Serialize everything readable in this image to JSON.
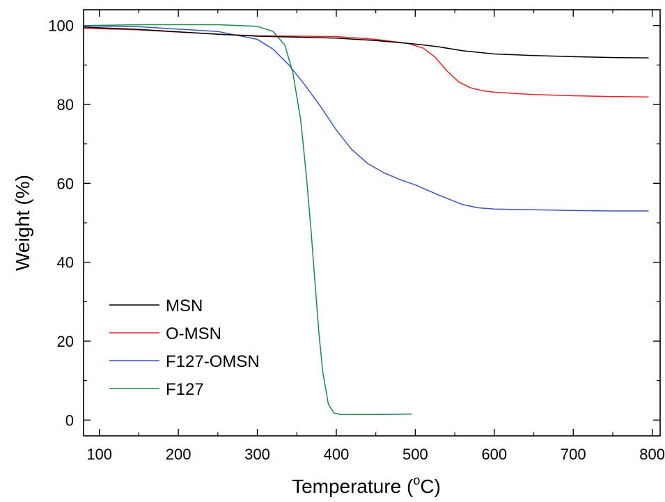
{
  "chart_data": {
    "type": "line",
    "title": "",
    "xlabel": "Temperature (",
    "xlabel_unit_sup": "o",
    "xlabel_unit": "C)",
    "ylabel": "Weight (%)",
    "xlim": [
      80,
      810
    ],
    "ylim": [
      -4,
      104
    ],
    "x_ticks": [
      100,
      200,
      300,
      400,
      500,
      600,
      700,
      800
    ],
    "y_ticks": [
      0,
      20,
      40,
      60,
      80,
      100
    ],
    "grid": false,
    "legend_position": "bottom-left",
    "series": [
      {
        "name": "MSN",
        "color": "#000000",
        "x": [
          80,
          150,
          250,
          300,
          400,
          450,
          500,
          530,
          560,
          600,
          650,
          700,
          750,
          795
        ],
        "y": [
          99.6,
          99.0,
          97.8,
          97.3,
          96.8,
          96.2,
          95.3,
          94.6,
          93.6,
          92.8,
          92.4,
          92.1,
          91.9,
          91.8
        ]
      },
      {
        "name": "O-MSN",
        "color": "#e3242b",
        "x": [
          80,
          150,
          250,
          300,
          400,
          450,
          490,
          510,
          525,
          540,
          555,
          570,
          585,
          600,
          650,
          700,
          750,
          795
        ],
        "y": [
          99.3,
          98.9,
          97.8,
          97.4,
          97.2,
          96.5,
          95.5,
          94.3,
          92.0,
          88.5,
          85.7,
          84.2,
          83.5,
          83.1,
          82.5,
          82.2,
          82.0,
          81.9
        ]
      },
      {
        "name": "F127-OMSN",
        "color": "#3a55b4",
        "x": [
          80,
          150,
          250,
          300,
          320,
          340,
          360,
          380,
          400,
          420,
          440,
          460,
          480,
          500,
          530,
          560,
          580,
          600,
          650,
          700,
          750,
          795
        ],
        "y": [
          99.9,
          99.7,
          98.5,
          96.5,
          94.0,
          90.0,
          85.0,
          79.5,
          73.5,
          68.5,
          65.0,
          62.7,
          61.0,
          59.6,
          57.0,
          54.6,
          53.8,
          53.5,
          53.3,
          53.1,
          53.0,
          53.0
        ]
      },
      {
        "name": "F127",
        "color": "#1a8a4a",
        "x": [
          80,
          150,
          250,
          300,
          320,
          335,
          345,
          355,
          362,
          368,
          373,
          378,
          383,
          390,
          397,
          405,
          420,
          450,
          495
        ],
        "y": [
          100,
          100.2,
          100.2,
          99.8,
          98.5,
          95.0,
          88.0,
          76.0,
          62.0,
          48.0,
          35.0,
          22.0,
          12.0,
          4.0,
          1.8,
          1.4,
          1.4,
          1.4,
          1.5
        ]
      }
    ]
  }
}
